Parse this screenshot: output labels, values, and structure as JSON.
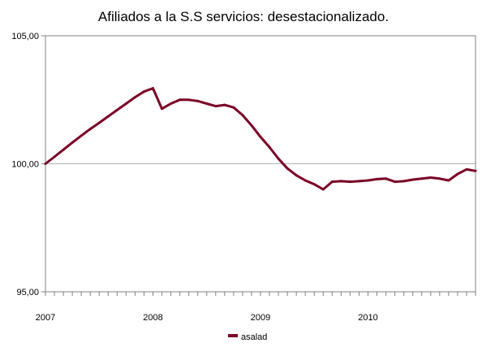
{
  "chart_data": {
    "type": "line",
    "title": "Afiliados a la S.S servicios: desestacionalizado.",
    "xlabel": "",
    "ylabel": "",
    "ylim": [
      95,
      105
    ],
    "y_ticks": [
      {
        "value": 95,
        "label": "95,00"
      },
      {
        "value": 100,
        "label": "100,00"
      },
      {
        "value": 105,
        "label": "105,00"
      }
    ],
    "x_ticks": [
      {
        "index": 0,
        "label": "2007"
      },
      {
        "index": 12,
        "label": "2008"
      },
      {
        "index": 24,
        "label": "2009"
      },
      {
        "index": 36,
        "label": "2010"
      }
    ],
    "grid": "horizontal major lines at tick values",
    "legend_position": "bottom",
    "colors": {
      "series": "#7a0025",
      "axis": "#808080",
      "grid": "#b3b3b3"
    },
    "series": [
      {
        "name": "asalad",
        "values": [
          100.0,
          100.27,
          100.55,
          100.83,
          101.1,
          101.36,
          101.6,
          101.85,
          102.1,
          102.35,
          102.6,
          102.82,
          102.95,
          102.15,
          102.35,
          102.5,
          102.5,
          102.45,
          102.35,
          102.25,
          102.3,
          102.2,
          101.9,
          101.5,
          101.05,
          100.65,
          100.2,
          99.82,
          99.55,
          99.35,
          99.2,
          99.0,
          99.3,
          99.32,
          99.3,
          99.32,
          99.35,
          99.4,
          99.42,
          99.3,
          99.32,
          99.38,
          99.42,
          99.46,
          99.42,
          99.35,
          99.6,
          99.78,
          99.72
        ]
      }
    ]
  }
}
